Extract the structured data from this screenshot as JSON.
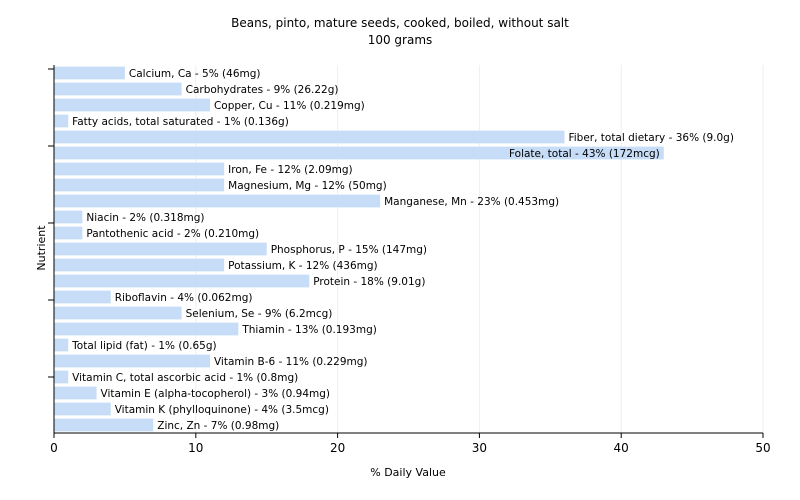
{
  "chart_data": {
    "type": "bar",
    "orientation": "horizontal",
    "title": "Beans, pinto, mature seeds, cooked, boiled, without salt",
    "subtitle": "100 grams",
    "xlabel": "% Daily Value",
    "ylabel": "Nutrient",
    "xlim": [
      0,
      50
    ],
    "xticks": [
      0,
      10,
      20,
      30,
      40,
      50
    ],
    "grid": true,
    "bar_color": "#c6dcf7",
    "grid_color": "#eeeeee",
    "categories": [
      "Calcium, Ca",
      "Carbohydrates",
      "Copper, Cu",
      "Fatty acids, total saturated",
      "Fiber, total dietary",
      "Folate, total",
      "Iron, Fe",
      "Magnesium, Mg",
      "Manganese, Mn",
      "Niacin",
      "Pantothenic acid",
      "Phosphorus, P",
      "Potassium, K",
      "Protein",
      "Riboflavin",
      "Selenium, Se",
      "Thiamin",
      "Total lipid (fat)",
      "Vitamin B-6",
      "Vitamin C, total ascorbic acid",
      "Vitamin E (alpha-tocopherol)",
      "Vitamin K (phylloquinone)",
      "Zinc, Zn"
    ],
    "values": [
      5,
      9,
      11,
      1,
      36,
      43,
      12,
      12,
      23,
      2,
      2,
      15,
      12,
      18,
      4,
      9,
      13,
      1,
      11,
      1,
      3,
      4,
      7
    ],
    "labels": [
      "Calcium, Ca - 5% (46mg)",
      "Carbohydrates - 9% (26.22g)",
      "Copper, Cu - 11% (0.219mg)",
      "Fatty acids, total saturated - 1% (0.136g)",
      "Fiber, total dietary - 36% (9.0g)",
      "Folate, total - 43% (172mcg)",
      "Iron, Fe - 12% (2.09mg)",
      "Magnesium, Mg - 12% (50mg)",
      "Manganese, Mn - 23% (0.453mg)",
      "Niacin - 2% (0.318mg)",
      "Pantothenic acid - 2% (0.210mg)",
      "Phosphorus, P - 15% (147mg)",
      "Potassium, K - 12% (436mg)",
      "Protein - 18% (9.01g)",
      "Riboflavin - 4% (0.062mg)",
      "Selenium, Se - 9% (6.2mcg)",
      "Thiamin - 13% (0.193mg)",
      "Total lipid (fat) - 1% (0.65g)",
      "Vitamin B-6 - 11% (0.229mg)",
      "Vitamin C, total ascorbic acid - 1% (0.8mg)",
      "Vitamin E (alpha-tocopherol) - 3% (0.94mg)",
      "Vitamin K (phylloquinone) - 4% (3.5mcg)",
      "Zinc, Zn - 7% (0.98mg)"
    ]
  }
}
